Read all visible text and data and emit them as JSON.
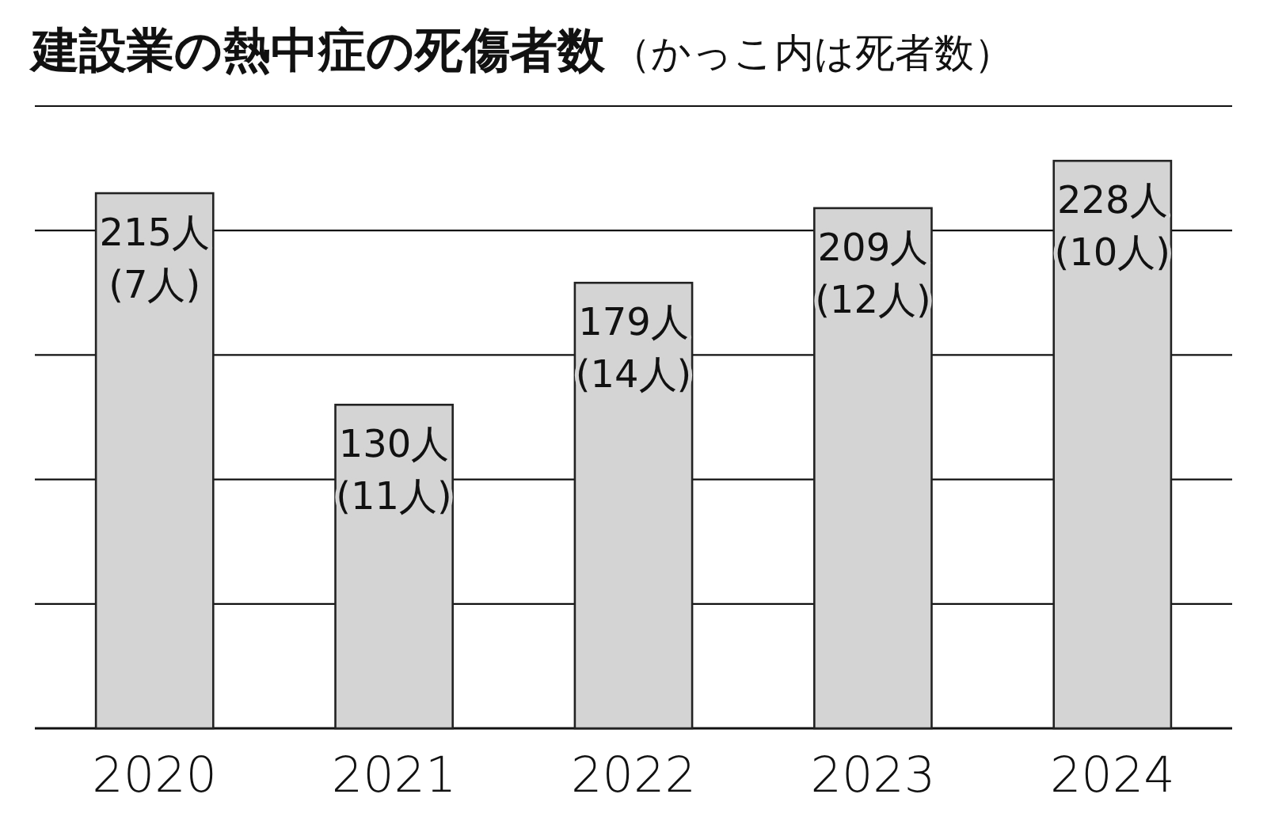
{
  "chart_data": {
    "type": "bar",
    "title": "建設業の熱中症の死傷者数",
    "subtitle": "（かっこ内は死者数）",
    "categories": [
      "2020",
      "2021",
      "2022",
      "2023",
      "2024"
    ],
    "values": [
      215,
      130,
      179,
      209,
      228
    ],
    "value_labels": [
      "215人",
      "130人",
      "179人",
      "209人",
      "228人"
    ],
    "annotations": [
      {
        "text": "(7人)",
        "x": "2020",
        "y": 215
      },
      {
        "text": "(11人)",
        "x": "2021",
        "y": 130
      },
      {
        "text": "(14人)",
        "x": "2022",
        "y": 179
      },
      {
        "text": "(12人)",
        "x": "2023",
        "y": 209
      },
      {
        "text": "(10人)",
        "x": "2024",
        "y": 228
      }
    ],
    "color": "#d4d4d4",
    "ylim": [
      0,
      250
    ],
    "yticks": [
      {
        "value": 0,
        "label": null
      },
      {
        "value": 50,
        "label": null
      },
      {
        "value": 100,
        "label": null
      },
      {
        "value": 150,
        "label": null
      },
      {
        "value": 200,
        "label": null
      },
      {
        "value": 250,
        "label": null
      }
    ],
    "grid": "y",
    "tick_labels": "x"
  }
}
